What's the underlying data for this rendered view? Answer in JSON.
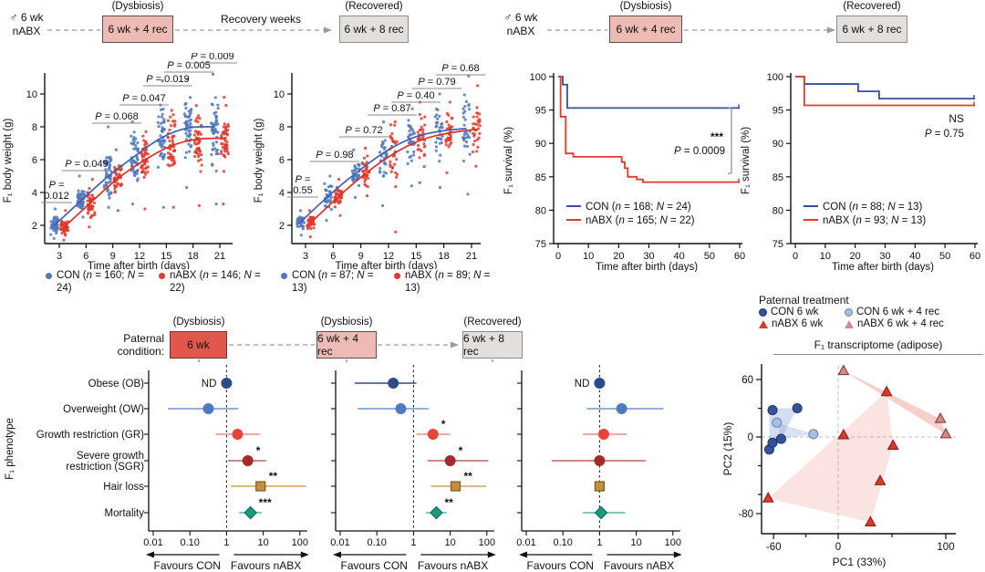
{
  "colors": {
    "con_blue_dot": "#5077bd",
    "con_blue_line": "#3c62ae",
    "nabx_red": "#e23a2d",
    "survival_blue": "#33519e",
    "box_red": "#e2574b",
    "box_pink": "#eebab6",
    "box_gray": "#e3dfdc",
    "arrow_gray": "#9a9a9a"
  },
  "headers": {
    "top_left": {
      "subject_line1": "♂ 6 wk",
      "subject_line2": "nABX",
      "stage1_state": "(Dysbiosis)",
      "stage1_box": "6 wk + 4 rec",
      "middle_label": "Recovery weeks",
      "stage2_state": "(Recovered)",
      "stage2_box": "6 wk + 8 rec"
    },
    "top_right": {
      "subject_line1": "♂ 6 wk",
      "subject_line2": "nABX",
      "stage1_state": "(Dysbiosis)",
      "stage1_box": "6 wk + 4 rec",
      "stage2_state": "(Recovered)",
      "stage2_box": "6 wk + 8 rec"
    },
    "bottom": {
      "label_line1": "Paternal",
      "label_line2": "condition:",
      "stage1_state": "(Dysbiosis)",
      "stage1_box": "6 wk",
      "stage2_state": "(Dysbiosis)",
      "stage2_box": "6 wk + 4 rec",
      "stage3_state": "(Recovered)",
      "stage3_box": "6 wk + 8 rec"
    }
  },
  "pca_legend": {
    "title": "Paternal treatment",
    "items": [
      {
        "label": "CON 6 wk",
        "marker": "circle",
        "color": "#33549b",
        "edge": "#24386b"
      },
      {
        "label": "CON 6 wk + 4 rec",
        "marker": "circle",
        "color": "#aabfdf",
        "edge": "#6a86b8"
      },
      {
        "label": "nABX 6 wk",
        "marker": "triangle",
        "color": "#d93a2d",
        "edge": "#8e1f18"
      },
      {
        "label": "nABX 6 wk + 4 rec",
        "marker": "triangle",
        "color": "#cf8f88",
        "edge": "#8e3a33"
      }
    ]
  },
  "chart_data": [
    {
      "id": "bodyweight_dysbiosis",
      "type": "scatter",
      "xlabel": "Time after birth (days)",
      "ylabel": "F₁ body weight (g)",
      "x": [
        3,
        6,
        9,
        12,
        15,
        18,
        21
      ],
      "yticks": [
        2,
        4,
        6,
        8,
        10
      ],
      "ylim": [
        1,
        11.5
      ],
      "p_values": [
        "P = 0.012",
        "P = 0.049",
        "P = 0.068",
        "P = 0.047",
        "P = 0.019",
        "P = 0.005",
        "P = 0.009"
      ],
      "series": [
        {
          "name": "CON (n = 160; N = 24)",
          "color": "#5077bd",
          "line_color": "#3c62ae",
          "mean": [
            2.0,
            3.5,
            5.0,
            6.2,
            7.4,
            8.0,
            8.0
          ],
          "min": [
            1.2,
            2.5,
            3.1,
            3.3,
            3.1,
            4.3,
            3.3
          ],
          "max": [
            3.0,
            5.0,
            8.0,
            8.3,
            10.8,
            10.9,
            11.2
          ]
        },
        {
          "name": "nABX (n = 146; N = 22)",
          "color": "#e23a2d",
          "line_color": "#dc2f23",
          "mean": [
            1.9,
            3.4,
            4.9,
            6.0,
            6.9,
            7.3,
            7.3
          ],
          "min": [
            1.1,
            1.9,
            2.9,
            3.0,
            3.1,
            3.2,
            3.3
          ],
          "max": [
            2.9,
            4.8,
            6.6,
            7.7,
            9.0,
            9.3,
            9.8
          ]
        }
      ]
    },
    {
      "id": "bodyweight_recovered",
      "type": "scatter",
      "xlabel": "Time after birth (days)",
      "ylabel": "F₁ body weight (g)",
      "x": [
        3,
        6,
        9,
        12,
        15,
        18,
        21
      ],
      "yticks": [
        2,
        4,
        6,
        8,
        10
      ],
      "ylim": [
        1,
        11.5
      ],
      "p_values": [
        "P = 0.55",
        "P = 0.98",
        "P = 0.72",
        "P = 0.87",
        "P = 0.40",
        "P = 0.79",
        "P = 0.68"
      ],
      "series": [
        {
          "name": "CON (n = 87; N = 13)",
          "color": "#5077bd",
          "line_color": "#3c62ae",
          "mean": [
            2.2,
            3.8,
            5.2,
            6.45,
            7.35,
            7.75,
            7.9
          ],
          "min": [
            1.4,
            2.3,
            3.7,
            3.2,
            4.4,
            4.3,
            3.9
          ],
          "max": [
            2.9,
            5.0,
            6.6,
            8.3,
            9.1,
            10.0,
            11.1
          ]
        },
        {
          "name": "nABX (n = 89; N = 13)",
          "color": "#e23a2d",
          "line_color": "#dc2f23",
          "mean": [
            2.15,
            3.75,
            5.2,
            6.4,
            7.25,
            7.65,
            7.85
          ],
          "min": [
            1.3,
            2.6,
            3.8,
            1.6,
            4.6,
            5.2,
            5.6
          ],
          "max": [
            2.9,
            4.8,
            6.7,
            8.3,
            9.5,
            9.5,
            10.5
          ]
        }
      ]
    },
    {
      "id": "survival_dysbiosis",
      "type": "line",
      "xlabel": "Time after birth (days)",
      "ylabel": "F₁ survival (%)",
      "xticks": [
        0,
        10,
        20,
        30,
        40,
        50,
        60
      ],
      "yticks": [
        75,
        80,
        85,
        90,
        95,
        100
      ],
      "xlim": [
        0,
        60
      ],
      "ylim": [
        75,
        100
      ],
      "annotation": {
        "stars": "***",
        "p": "P = 0.0009",
        "bracket": [
          95.3,
          85.5
        ]
      },
      "series": [
        {
          "name": "CON (n = 168; N = 24)",
          "color": "#33519e",
          "steps": [
            [
              0,
              100
            ],
            [
              1.5,
              100
            ],
            [
              1.5,
              98.8
            ],
            [
              3,
              98.8
            ],
            [
              3,
              95.3
            ],
            [
              60,
              95.3
            ]
          ]
        },
        {
          "name": "nABX (n = 165; N = 22)",
          "color": "#e23a2d",
          "steps": [
            [
              0,
              100
            ],
            [
              0.8,
              100
            ],
            [
              0.8,
              94.0
            ],
            [
              2.5,
              94.0
            ],
            [
              2.5,
              88.5
            ],
            [
              5,
              88.5
            ],
            [
              5,
              88.0
            ],
            [
              21,
              88.0
            ],
            [
              21,
              87.2
            ],
            [
              22,
              87.2
            ],
            [
              22,
              86.3
            ],
            [
              23,
              86.3
            ],
            [
              23,
              85.0
            ],
            [
              26,
              85.0
            ],
            [
              26,
              84.6
            ],
            [
              28,
              84.6
            ],
            [
              28,
              84.2
            ],
            [
              60,
              84.2
            ]
          ]
        }
      ]
    },
    {
      "id": "survival_recovered",
      "type": "line",
      "xlabel": "Time after birth (days)",
      "ylabel": "F₁ survival (%)",
      "xticks": [
        0,
        10,
        20,
        30,
        40,
        50,
        60
      ],
      "yticks": [
        75,
        80,
        85,
        90,
        95,
        100
      ],
      "xlim": [
        0,
        60
      ],
      "ylim": [
        75,
        100
      ],
      "annotation": {
        "stars": "NS",
        "p": "P = 0.75"
      },
      "series": [
        {
          "name": "CON (n = 88; N = 13)",
          "color": "#33519e",
          "steps": [
            [
              0,
              100
            ],
            [
              3,
              100
            ],
            [
              3,
              98.9
            ],
            [
              21,
              98.9
            ],
            [
              21,
              97.8
            ],
            [
              28,
              97.8
            ],
            [
              28,
              96.7
            ],
            [
              60,
              96.7
            ]
          ]
        },
        {
          "name": "nABX (n = 93; N = 13)",
          "color": "#e23a2d",
          "steps": [
            [
              0,
              100
            ],
            [
              3,
              100
            ],
            [
              3,
              95.7
            ],
            [
              60,
              95.7
            ]
          ]
        }
      ]
    },
    {
      "id": "forest",
      "type": "forest",
      "ylabel": "F₁ phenotype",
      "xticks": [
        "0.01",
        "0.10",
        "1",
        "10",
        "100"
      ],
      "favours_left": "Favours CON",
      "favours_right": "Favours nABX",
      "rows": [
        {
          "label": "Obese (OB)",
          "shape": "circle",
          "color": "#2c4a8c",
          "line": "#2c4a8c"
        },
        {
          "label": "Overweight (OW)",
          "shape": "circle",
          "color": "#4f79c2",
          "line": "#7396cf"
        },
        {
          "label": "Growth restriction (GR)",
          "shape": "circle",
          "color": "#e8443a",
          "line": "#f08a80"
        },
        {
          "label": "Severe growth",
          "label2": "restriction (SGR)",
          "shape": "circle",
          "color": "#a8292b",
          "line": "#c2605b"
        },
        {
          "label": "Hair loss",
          "shape": "square",
          "color": "#c68d42",
          "line": "#d7a359",
          "edge": "#7d5a1d"
        },
        {
          "label": "Mortality",
          "shape": "diamond",
          "color": "#1a9a82",
          "line": "#57b9a6",
          "edge": "#0d6e5b"
        }
      ],
      "panels": [
        {
          "title": "6 wk",
          "values": [
            {
              "or": 1,
              "nd": true
            },
            {
              "or": 0.32,
              "lo": 0.025,
              "hi": 2.1
            },
            {
              "or": 2.0,
              "lo": 0.5,
              "hi": 8.0
            },
            {
              "or": 3.8,
              "lo": 1.1,
              "hi": 12,
              "sig": "*"
            },
            {
              "or": 8.5,
              "lo": 1.3,
              "hi": 150,
              "sig": "**"
            },
            {
              "or": 4.5,
              "lo": 2.2,
              "hi": 9,
              "sig": "***"
            }
          ]
        },
        {
          "title": "6 wk + 4 rec",
          "values": [
            {
              "or": 0.28,
              "lo": 0.025,
              "hi": 1.2
            },
            {
              "or": 0.45,
              "lo": 0.03,
              "hi": 2.6
            },
            {
              "or": 3.4,
              "lo": 1.2,
              "hi": 10,
              "sig": "*"
            },
            {
              "or": 10,
              "lo": 2.4,
              "hi": 110,
              "sig": "*"
            },
            {
              "or": 14,
              "lo": 3,
              "hi": 95,
              "sig": "**"
            },
            {
              "or": 4.2,
              "lo": 2.2,
              "hi": 8,
              "sig": "**"
            }
          ]
        },
        {
          "title": "6 wk + 8 rec",
          "values": [
            {
              "or": 1,
              "nd": true
            },
            {
              "or": 4,
              "lo": 0.45,
              "hi": 55
            },
            {
              "or": 1.3,
              "lo": 0.35,
              "hi": 5.5
            },
            {
              "or": 1.0,
              "lo": 0.05,
              "hi": 18
            },
            {
              "or": 1.0
            },
            {
              "or": 1.1,
              "lo": 0.35,
              "hi": 5
            }
          ]
        }
      ]
    },
    {
      "id": "pca",
      "type": "scatter",
      "title": "F₁ transcriptome (adipose)",
      "xlabel": "PC1 (33%)",
      "ylabel": "PC2 (15%)",
      "xticks": [
        -60,
        0,
        100
      ],
      "yticks": [
        -80,
        0,
        60
      ],
      "groups": [
        {
          "name": "CON 6 wk",
          "marker": "circle",
          "color": "#33549b",
          "edge": "#24386b",
          "points": [
            [
              -61,
              28
            ],
            [
              -38,
              30
            ],
            [
              -64,
              -13
            ],
            [
              -61,
              -6
            ],
            [
              -53,
              -2
            ]
          ]
        },
        {
          "name": "CON 6 wk + 4 rec",
          "marker": "circle",
          "color": "#aabfdf",
          "edge": "#6a86b8",
          "points": [
            [
              -57,
              15
            ],
            [
              -23,
              3
            ]
          ]
        },
        {
          "name": "nABX 6 wk",
          "marker": "triangle",
          "color": "#d93a2d",
          "edge": "#8e1f18",
          "points": [
            [
              5,
              2
            ],
            [
              45,
              47
            ],
            [
              51,
              -9
            ],
            [
              39,
              -46
            ],
            [
              -65,
              -64
            ],
            [
              30,
              -89
            ]
          ]
        },
        {
          "name": "nABX 6 wk + 4 rec",
          "marker": "triangle",
          "color": "#cf8f88",
          "edge": "#8e3a33",
          "points": [
            [
              5,
              69
            ],
            [
              95,
              19
            ],
            [
              100,
              3
            ]
          ]
        }
      ],
      "hulls": [
        {
          "color": "#7896d2",
          "opacity": 0.32,
          "points": [
            [
              -64,
              30
            ],
            [
              -38,
              30
            ],
            [
              -53,
              -2
            ],
            [
              -64,
              -13
            ]
          ]
        },
        {
          "color": "#7896d2",
          "opacity": 0.28,
          "points": [
            [
              -57,
              15
            ],
            [
              -53,
              -2
            ],
            [
              -23,
              3
            ]
          ]
        },
        {
          "color": "#f0908a",
          "opacity": 0.25,
          "points": [
            [
              -65,
              -64
            ],
            [
              45,
              47
            ],
            [
              51,
              -9
            ],
            [
              30,
              -89
            ]
          ]
        },
        {
          "color": "#ec7d76",
          "opacity": 0.38,
          "points": [
            [
              5,
              69
            ],
            [
              95,
              19
            ],
            [
              100,
              3
            ]
          ]
        }
      ]
    }
  ]
}
